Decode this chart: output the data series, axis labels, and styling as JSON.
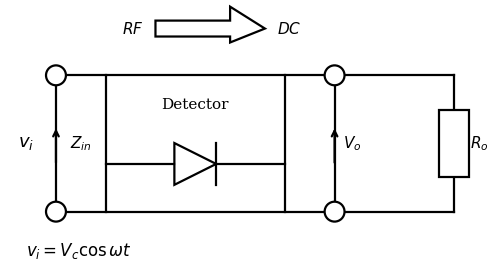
{
  "bg_color": "#ffffff",
  "line_color": "#000000",
  "detector_label": "Detector",
  "vi_label": "$v_i$",
  "Zin_label": "$Z_{in}$",
  "Vo_label": "$V_o$",
  "Ro_label": "$R_o$",
  "RF_label": "$RF$",
  "DC_label": "$DC$",
  "equation_label": "$v_i = V_c \\cos\\omega t$",
  "figsize": [
    5.0,
    2.8
  ],
  "dpi": 100
}
